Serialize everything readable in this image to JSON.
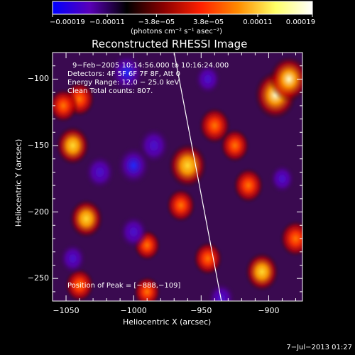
{
  "chart_data": {
    "type": "heatmap",
    "title": "Reconstructed RHESSI Image",
    "xlabel": "Heliocentric X (arcsec)",
    "ylabel": "Heliocentric Y (arcsec)",
    "xlim": [
      -1060,
      -875
    ],
    "ylim": [
      -267,
      -80
    ],
    "xticks": [
      {
        "value": -1050,
        "label": "−1050"
      },
      {
        "value": -1000,
        "label": "−1000"
      },
      {
        "value": -950,
        "label": "−950"
      },
      {
        "value": -900,
        "label": "−900"
      }
    ],
    "yticks": [
      {
        "value": -100,
        "label": "−100"
      },
      {
        "value": -150,
        "label": "−150"
      },
      {
        "value": -200,
        "label": "−200"
      },
      {
        "value": -250,
        "label": "−250"
      }
    ],
    "colorbar": {
      "range": [
        -0.00019,
        0.00019
      ],
      "ticks": [
        {
          "value": -0.00019,
          "label": "−0.00019"
        },
        {
          "value": -0.00011,
          "label": "−0.00011"
        },
        {
          "value": -3.8e-05,
          "label": "−3.8e−05"
        },
        {
          "value": 3.8e-05,
          "label": "3.8e−05"
        },
        {
          "value": 0.00011,
          "label": "0.00011"
        },
        {
          "value": 0.00019,
          "label": "0.00019"
        }
      ],
      "unit_label": "(photons cm⁻² s⁻¹ asec⁻²)",
      "colors": [
        "#0000ff",
        "#5a00b8",
        "#000000",
        "#8b0000",
        "#ff2000",
        "#ff8c00",
        "#ffff66",
        "#ffffff"
      ]
    },
    "annotations": [
      "9−Feb−2005 10:14:56.000 to 10:16:24.000",
      "Detectors: 4F 5F 6F 7F 8F, Att 0",
      "Energy Range: 12.0 − 25.0 keV",
      "Clean    Total counts: 807."
    ],
    "peak": {
      "label": "Position of Peak = [−888,−109]",
      "x": -888,
      "y": -109
    },
    "limb_line": [
      [
        -970,
        -80
      ],
      [
        -935,
        -267
      ]
    ],
    "sources": [
      {
        "x": -895,
        "y": -112,
        "v": 0.00019
      },
      {
        "x": -885,
        "y": -100,
        "v": 0.00017
      },
      {
        "x": -960,
        "y": -165,
        "v": 0.00016
      },
      {
        "x": -1045,
        "y": -150,
        "v": 0.00012
      },
      {
        "x": -1040,
        "y": -115,
        "v": 9e-05
      },
      {
        "x": -1052,
        "y": -120,
        "v": 8e-05
      },
      {
        "x": -1035,
        "y": -205,
        "v": 0.00012
      },
      {
        "x": -940,
        "y": -135,
        "v": 0.0001
      },
      {
        "x": -925,
        "y": -150,
        "v": 8e-05
      },
      {
        "x": -965,
        "y": -195,
        "v": 8e-05
      },
      {
        "x": -915,
        "y": -180,
        "v": 9e-05
      },
      {
        "x": -880,
        "y": -220,
        "v": 0.0001
      },
      {
        "x": -905,
        "y": -245,
        "v": 0.00012
      },
      {
        "x": -945,
        "y": -235,
        "v": 8e-05
      },
      {
        "x": -990,
        "y": -225,
        "v": 6e-05
      },
      {
        "x": -1040,
        "y": -255,
        "v": 8e-05
      },
      {
        "x": -990,
        "y": -260,
        "v": 6e-05
      },
      {
        "x": -1005,
        "y": -95,
        "v": -0.00013
      },
      {
        "x": -985,
        "y": -150,
        "v": -0.0001
      },
      {
        "x": -1000,
        "y": -165,
        "v": -0.00012
      },
      {
        "x": -1025,
        "y": -170,
        "v": -9e-05
      },
      {
        "x": -945,
        "y": -100,
        "v": -6e-05
      },
      {
        "x": -1000,
        "y": -215,
        "v": -8e-05
      },
      {
        "x": -1045,
        "y": -235,
        "v": -6e-05
      },
      {
        "x": -935,
        "y": -265,
        "v": -7e-05
      },
      {
        "x": -890,
        "y": -175,
        "v": -5e-05
      }
    ]
  },
  "footer": {
    "date": "7−Jul−2013 01:27"
  }
}
